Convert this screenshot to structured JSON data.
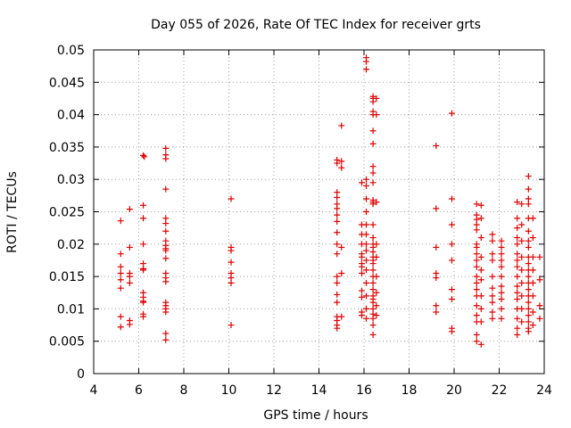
{
  "chart_data": {
    "type": "scatter",
    "title": "Day 055 of 2026, Rate Of TEC Index for receiver grts",
    "xlabel": "GPS time / hours",
    "ylabel": "ROTI / TECUs",
    "xlim": [
      4,
      24
    ],
    "ylim": [
      0,
      0.05
    ],
    "xticks": [
      4,
      6,
      8,
      10,
      12,
      14,
      16,
      18,
      20,
      22,
      24
    ],
    "yticks": [
      0,
      0.005,
      0.01,
      0.015,
      0.02,
      0.025,
      0.03,
      0.035,
      0.04,
      0.045,
      0.05
    ],
    "xtick_labels": [
      "4",
      "6",
      "8",
      "10",
      "12",
      "14",
      "16",
      "18",
      "20",
      "22",
      "24"
    ],
    "ytick_labels": [
      "0",
      "0.005",
      "0.01",
      "0.015",
      "0.02",
      "0.025",
      "0.03",
      "0.035",
      "0.04",
      "0.045",
      "0.05"
    ],
    "grid": true,
    "marker": "plus",
    "color": "#e00000",
    "series": [
      {
        "points": [
          [
            5.2,
            0.0236
          ],
          [
            5.2,
            0.0185
          ],
          [
            5.2,
            0.0165
          ],
          [
            5.2,
            0.0155
          ],
          [
            5.2,
            0.0145
          ],
          [
            5.2,
            0.0132
          ],
          [
            5.2,
            0.0088
          ],
          [
            5.2,
            0.0072
          ],
          [
            5.6,
            0.0254
          ],
          [
            5.6,
            0.0195
          ],
          [
            5.6,
            0.0155
          ],
          [
            5.6,
            0.015
          ],
          [
            5.6,
            0.014
          ],
          [
            5.6,
            0.0082
          ],
          [
            5.6,
            0.0076
          ],
          [
            6.2,
            0.0337
          ],
          [
            6.25,
            0.0335
          ],
          [
            6.2,
            0.026
          ],
          [
            6.2,
            0.024
          ],
          [
            6.2,
            0.02
          ],
          [
            6.2,
            0.017
          ],
          [
            6.2,
            0.0162
          ],
          [
            6.2,
            0.016
          ],
          [
            6.2,
            0.0125
          ],
          [
            6.2,
            0.0118
          ],
          [
            6.2,
            0.0112
          ],
          [
            6.2,
            0.011
          ],
          [
            6.2,
            0.0092
          ],
          [
            6.2,
            0.0088
          ],
          [
            7.2,
            0.0348
          ],
          [
            7.2,
            0.0338
          ],
          [
            7.2,
            0.0332
          ],
          [
            7.2,
            0.0285
          ],
          [
            7.2,
            0.024
          ],
          [
            7.2,
            0.0232
          ],
          [
            7.2,
            0.022
          ],
          [
            7.2,
            0.0205
          ],
          [
            7.2,
            0.0198
          ],
          [
            7.2,
            0.0193
          ],
          [
            7.2,
            0.019
          ],
          [
            7.2,
            0.0178
          ],
          [
            7.2,
            0.0155
          ],
          [
            7.2,
            0.0148
          ],
          [
            7.2,
            0.0142
          ],
          [
            7.2,
            0.011
          ],
          [
            7.2,
            0.0105
          ],
          [
            7.2,
            0.01
          ],
          [
            7.2,
            0.0095
          ],
          [
            7.2,
            0.0062
          ],
          [
            7.2,
            0.0052
          ],
          [
            10.1,
            0.027
          ],
          [
            10.1,
            0.0195
          ],
          [
            10.1,
            0.019
          ],
          [
            10.1,
            0.0172
          ],
          [
            10.1,
            0.0155
          ],
          [
            10.1,
            0.0148
          ],
          [
            10.1,
            0.014
          ],
          [
            10.1,
            0.0075
          ],
          [
            14.8,
            0.033
          ],
          [
            14.8,
            0.0325
          ],
          [
            14.8,
            0.028
          ],
          [
            14.8,
            0.0272
          ],
          [
            14.8,
            0.0262
          ],
          [
            14.8,
            0.0255
          ],
          [
            14.8,
            0.0245
          ],
          [
            14.8,
            0.0235
          ],
          [
            14.8,
            0.0218
          ],
          [
            14.8,
            0.02
          ],
          [
            14.8,
            0.0185
          ],
          [
            14.8,
            0.015
          ],
          [
            14.8,
            0.014
          ],
          [
            14.8,
            0.0122
          ],
          [
            14.8,
            0.011
          ],
          [
            14.8,
            0.0088
          ],
          [
            14.8,
            0.0082
          ],
          [
            14.8,
            0.0075
          ],
          [
            14.8,
            0.007
          ],
          [
            15.0,
            0.0383
          ],
          [
            15.0,
            0.0328
          ],
          [
            15.0,
            0.0318
          ],
          [
            15.0,
            0.0195
          ],
          [
            15.0,
            0.0155
          ],
          [
            15.0,
            0.0088
          ],
          [
            15.9,
            0.0295
          ],
          [
            15.9,
            0.023
          ],
          [
            15.9,
            0.0215
          ],
          [
            15.9,
            0.02
          ],
          [
            15.9,
            0.0185
          ],
          [
            15.9,
            0.018
          ],
          [
            15.9,
            0.017
          ],
          [
            15.9,
            0.0165
          ],
          [
            15.9,
            0.0155
          ],
          [
            15.9,
            0.0128
          ],
          [
            15.9,
            0.0118
          ],
          [
            15.9,
            0.0095
          ],
          [
            15.9,
            0.009
          ],
          [
            16.1,
            0.0488
          ],
          [
            16.1,
            0.0482
          ],
          [
            16.1,
            0.047
          ],
          [
            16.1,
            0.03
          ],
          [
            16.1,
            0.029
          ],
          [
            16.1,
            0.027
          ],
          [
            16.1,
            0.025
          ],
          [
            16.1,
            0.023
          ],
          [
            16.1,
            0.0215
          ],
          [
            16.1,
            0.02
          ],
          [
            16.1,
            0.019
          ],
          [
            16.1,
            0.0175
          ],
          [
            16.1,
            0.016
          ],
          [
            16.1,
            0.014
          ],
          [
            16.1,
            0.012
          ],
          [
            16.1,
            0.01
          ],
          [
            16.1,
            0.0085
          ],
          [
            16.4,
            0.0428
          ],
          [
            16.4,
            0.0425
          ],
          [
            16.4,
            0.042
          ],
          [
            16.4,
            0.0405
          ],
          [
            16.4,
            0.04
          ],
          [
            16.4,
            0.0375
          ],
          [
            16.4,
            0.0355
          ],
          [
            16.4,
            0.032
          ],
          [
            16.4,
            0.031
          ],
          [
            16.4,
            0.0295
          ],
          [
            16.4,
            0.0268
          ],
          [
            16.4,
            0.0265
          ],
          [
            16.4,
            0.0262
          ],
          [
            16.4,
            0.023
          ],
          [
            16.4,
            0.021
          ],
          [
            16.4,
            0.02
          ],
          [
            16.4,
            0.0195
          ],
          [
            16.4,
            0.0188
          ],
          [
            16.4,
            0.018
          ],
          [
            16.4,
            0.0175
          ],
          [
            16.4,
            0.017
          ],
          [
            16.4,
            0.016
          ],
          [
            16.4,
            0.015
          ],
          [
            16.4,
            0.014
          ],
          [
            16.4,
            0.013
          ],
          [
            16.4,
            0.012
          ],
          [
            16.4,
            0.0115
          ],
          [
            16.4,
            0.011
          ],
          [
            16.4,
            0.01
          ],
          [
            16.4,
            0.0092
          ],
          [
            16.4,
            0.0085
          ],
          [
            16.4,
            0.0075
          ],
          [
            16.4,
            0.006
          ],
          [
            16.55,
            0.0425
          ],
          [
            16.55,
            0.04
          ],
          [
            16.55,
            0.0265
          ],
          [
            16.55,
            0.02
          ],
          [
            16.55,
            0.018
          ],
          [
            16.55,
            0.015
          ],
          [
            16.55,
            0.0125
          ],
          [
            16.55,
            0.0105
          ],
          [
            16.55,
            0.009
          ],
          [
            19.2,
            0.0352
          ],
          [
            19.2,
            0.0255
          ],
          [
            19.2,
            0.0195
          ],
          [
            19.2,
            0.0155
          ],
          [
            19.2,
            0.0148
          ],
          [
            19.2,
            0.0105
          ],
          [
            19.2,
            0.0095
          ],
          [
            19.9,
            0.0402
          ],
          [
            19.9,
            0.027
          ],
          [
            19.9,
            0.023
          ],
          [
            19.9,
            0.02
          ],
          [
            19.9,
            0.0175
          ],
          [
            19.9,
            0.013
          ],
          [
            19.9,
            0.0115
          ],
          [
            19.9,
            0.007
          ],
          [
            19.9,
            0.0065
          ],
          [
            21.0,
            0.0262
          ],
          [
            21.0,
            0.0245
          ],
          [
            21.0,
            0.0238
          ],
          [
            21.0,
            0.023
          ],
          [
            21.0,
            0.0222
          ],
          [
            21.0,
            0.02
          ],
          [
            21.0,
            0.0195
          ],
          [
            21.0,
            0.0185
          ],
          [
            21.0,
            0.0175
          ],
          [
            21.0,
            0.0165
          ],
          [
            21.0,
            0.015
          ],
          [
            21.0,
            0.014
          ],
          [
            21.0,
            0.013
          ],
          [
            21.0,
            0.012
          ],
          [
            21.0,
            0.0105
          ],
          [
            21.0,
            0.009
          ],
          [
            21.0,
            0.008
          ],
          [
            21.0,
            0.006
          ],
          [
            21.0,
            0.005
          ],
          [
            21.2,
            0.026
          ],
          [
            21.2,
            0.024
          ],
          [
            21.2,
            0.021
          ],
          [
            21.2,
            0.018
          ],
          [
            21.2,
            0.016
          ],
          [
            21.2,
            0.0145
          ],
          [
            21.2,
            0.012
          ],
          [
            21.2,
            0.01
          ],
          [
            21.2,
            0.008
          ],
          [
            21.2,
            0.0045
          ],
          [
            21.7,
            0.0215
          ],
          [
            21.7,
            0.0205
          ],
          [
            21.7,
            0.0185
          ],
          [
            21.7,
            0.0175
          ],
          [
            21.7,
            0.015
          ],
          [
            21.7,
            0.0132
          ],
          [
            21.7,
            0.012
          ],
          [
            21.7,
            0.011
          ],
          [
            21.7,
            0.0095
          ],
          [
            21.7,
            0.0085
          ],
          [
            22.1,
            0.0205
          ],
          [
            22.1,
            0.0195
          ],
          [
            22.1,
            0.0185
          ],
          [
            22.1,
            0.0175
          ],
          [
            22.1,
            0.0165
          ],
          [
            22.1,
            0.015
          ],
          [
            22.1,
            0.0135
          ],
          [
            22.1,
            0.0125
          ],
          [
            22.1,
            0.0115
          ],
          [
            22.1,
            0.01
          ],
          [
            22.1,
            0.0085
          ],
          [
            22.8,
            0.0265
          ],
          [
            22.8,
            0.024
          ],
          [
            22.8,
            0.0225
          ],
          [
            22.8,
            0.021
          ],
          [
            22.8,
            0.02
          ],
          [
            22.8,
            0.0185
          ],
          [
            22.8,
            0.0175
          ],
          [
            22.8,
            0.0165
          ],
          [
            22.8,
            0.015
          ],
          [
            22.8,
            0.0135
          ],
          [
            22.8,
            0.0125
          ],
          [
            22.8,
            0.0115
          ],
          [
            22.8,
            0.01
          ],
          [
            22.8,
            0.0085
          ],
          [
            22.8,
            0.007
          ],
          [
            22.8,
            0.006
          ],
          [
            23.0,
            0.0262
          ],
          [
            23.0,
            0.023
          ],
          [
            23.0,
            0.0205
          ],
          [
            23.0,
            0.018
          ],
          [
            23.0,
            0.016
          ],
          [
            23.0,
            0.014
          ],
          [
            23.0,
            0.012
          ],
          [
            23.0,
            0.01
          ],
          [
            23.0,
            0.008
          ],
          [
            23.3,
            0.0305
          ],
          [
            23.3,
            0.0285
          ],
          [
            23.3,
            0.027
          ],
          [
            23.3,
            0.0262
          ],
          [
            23.3,
            0.024
          ],
          [
            23.3,
            0.022
          ],
          [
            23.3,
            0.0205
          ],
          [
            23.3,
            0.0195
          ],
          [
            23.3,
            0.018
          ],
          [
            23.3,
            0.017
          ],
          [
            23.3,
            0.016
          ],
          [
            23.3,
            0.015
          ],
          [
            23.3,
            0.014
          ],
          [
            23.3,
            0.013
          ],
          [
            23.3,
            0.012
          ],
          [
            23.3,
            0.011
          ],
          [
            23.3,
            0.01
          ],
          [
            23.3,
            0.009
          ],
          [
            23.3,
            0.008
          ],
          [
            23.3,
            0.007
          ],
          [
            23.3,
            0.0065
          ],
          [
            23.5,
            0.024
          ],
          [
            23.5,
            0.021
          ],
          [
            23.5,
            0.018
          ],
          [
            23.5,
            0.016
          ],
          [
            23.5,
            0.014
          ],
          [
            23.5,
            0.012
          ],
          [
            23.5,
            0.0095
          ],
          [
            23.5,
            0.0075
          ],
          [
            23.8,
            0.018
          ],
          [
            23.8,
            0.0145
          ],
          [
            23.8,
            0.0105
          ],
          [
            23.8,
            0.0085
          ]
        ]
      }
    ]
  }
}
